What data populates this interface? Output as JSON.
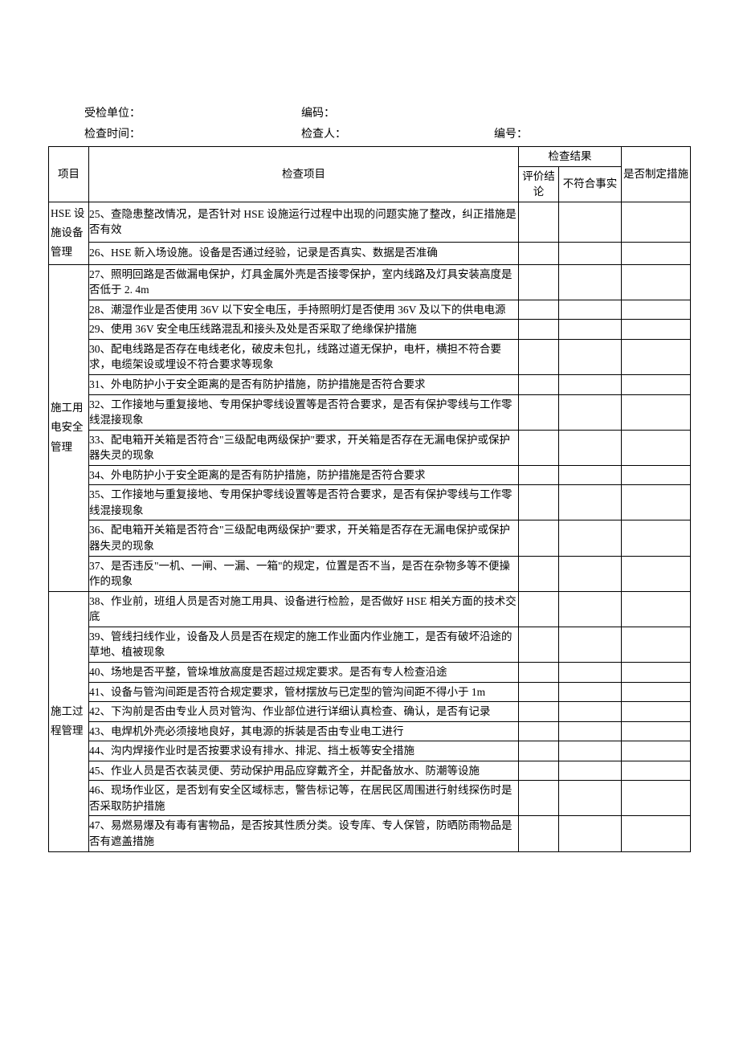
{
  "header": {
    "row1": {
      "unit_label": "受检单位：",
      "code_label": "编码："
    },
    "row2": {
      "time_label": "检查时间：",
      "inspector_label": "检查人：",
      "number_label": "编号："
    }
  },
  "table": {
    "head": {
      "category": "项目",
      "item": "检查项目",
      "result": "检查结果",
      "eval": "评价结论",
      "fact": "不符合事实",
      "measure": "是否制定措施"
    },
    "sections": [
      {
        "category": "HSE 设施设备管理",
        "items": [
          "25、查隐患整改情况，是否针对 HSE 设施运行过程中出现的问题实施了整改，纠正措施是否有效",
          "26、HSE 新入场设施。设备是否通过经验，记录是否真实、数据是否准确"
        ]
      },
      {
        "category": "施工用电安全管理",
        "items": [
          "27、照明回路是否做漏电保护，灯具金属外壳是否接零保护，室内线路及灯具安装高度是否低于 2. 4m",
          "28、潮湿作业是否使用 36V 以下安全电压，手持照明灯是否使用 36V 及以下的供电电源",
          "29、使用 36V 安全电压线路混乱和接头及处是否采取了绝缘保护措施",
          "30、配电线路是否存在电线老化，破皮未包扎，线路过道无保护，电杆，横担不符合要求，电缆架设或埋设不符合要求等现象",
          "31、外电防护小于安全距离的是否有防护措施，防护措施是否符合要求",
          "32、工作接地与重复接地、专用保护零线设置等是否符合要求，是否有保护零线与工作零线混接现象",
          "33、配电箱开关箱是否符合\"三级配电两级保护\"要求，开关箱是否存在无漏电保护或保护器失灵的现象",
          "34、外电防护小于安全距离的是否有防护措施，防护措施是否符合要求",
          "35、工作接地与重复接地、专用保护零线设置等是否符合要求，是否有保护零线与工作零线混接现象",
          "36、配电箱开关箱是否符合\"三级配电两级保护\"要求，开关箱是否存在无漏电保护或保护器失灵的现象",
          "37、是否违反\"一机、一闸、一漏、一箱\"的规定，位置是否不当，是否在杂物多等不便操作的现象"
        ]
      },
      {
        "category": "施工过程管理",
        "items": [
          "38、作业前，班组人员是否对施工用具、设备进行检脸，是否做好 HSE 相关方面的技术交底",
          "39、管线扫线作业，设备及人员是否在规定的施工作业面内作业施工，是否有破坏沿途的草地、植被现象",
          "40、场地是否平整，管垛堆放高度是否超过规定要求。是否有专人检查沿途",
          "41、设备与管沟间距是否符合规定要求，管材摆放与已定型的管沟间距不得小于 1m",
          "42、下沟前是否由专业人员对管沟、作业部位进行详细认真检查、确认，是否有记录",
          "43、电焊机外壳必须接地良好，其电源的拆装是否由专业电工进行",
          "44、沟内焊接作业时是否按要求设有排水、排泥、挡土板等安全措施",
          "45、作业人员是否衣装灵便、劳动保护用品应穿戴齐全，并配备放水、防潮等设施",
          "46、现场作业区，是否划有安全区域标志，警告标记等，在居民区周围进行射线探伤时是否采取防护措施",
          "47、易燃易爆及有毒有害物品，是否按其性质分类。设专库、专人保管，防晒防雨物品是否有遮盖措施"
        ]
      }
    ]
  }
}
